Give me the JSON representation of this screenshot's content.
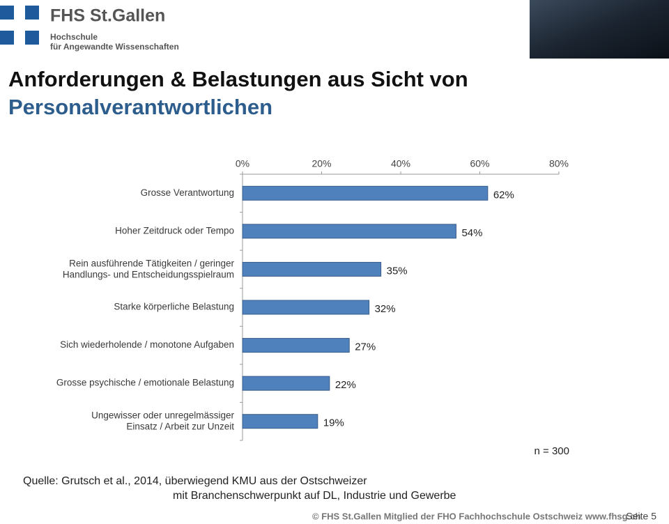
{
  "header": {
    "logo": "FHS St.Gallen",
    "logo_line1": "Hochschule",
    "logo_line2": "für Angewandte Wissenschaften",
    "title_line1": "Anforderungen & Belastungen aus Sicht von",
    "title_line2": "Personalverantwortlichen"
  },
  "chart_data": {
    "type": "hbar",
    "categories": [
      "Grosse Verantwortung",
      "Hoher Zeitdruck oder Tempo",
      "Rein ausführende Tätigkeiten / geringer\nHandlungs- und Entscheidungsspielraum",
      "Starke körperliche Belastung",
      "Sich wiederholende / monotone Aufgaben",
      "Grosse psychische / emotionale Belastung",
      "Ungewisser oder unregelmässiger\nEinsatz / Arbeit zur Unzeit"
    ],
    "values": [
      62,
      54,
      35,
      32,
      27,
      22,
      19
    ],
    "value_labels": [
      "62%",
      "54%",
      "35%",
      "32%",
      "27%",
      "22%",
      "19%"
    ],
    "color": "#4f81bd",
    "xlim": [
      0,
      80
    ],
    "xticks": [
      {
        "value": 0,
        "label": "0%"
      },
      {
        "value": 20,
        "label": "20%"
      },
      {
        "value": 40,
        "label": "40%"
      },
      {
        "value": 60,
        "label": "60%"
      },
      {
        "value": 80,
        "label": "80%"
      }
    ],
    "grid": false,
    "note": "n = 300"
  },
  "footer": {
    "source_line1": "Quelle: Grutsch et al., 2014, überwiegend KMU aus der Ostschweizer",
    "source_line2": "mit Branchenschwerpunkt auf DL, Industrie und Gewerbe",
    "bar": "© FHS St.Gallen Mitglied der FHO Fachhochschule Ostschweiz www.fhsg.ch",
    "page": "Seite 5"
  }
}
